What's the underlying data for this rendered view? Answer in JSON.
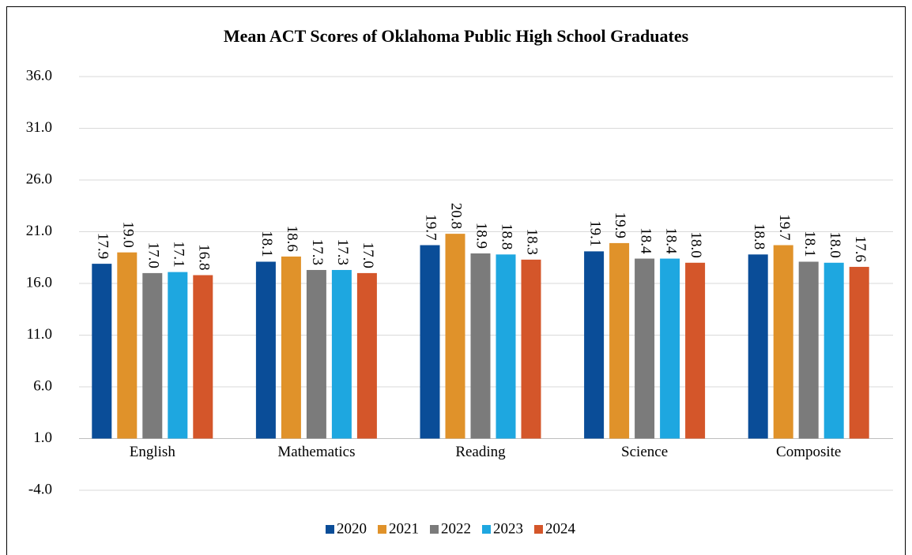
{
  "chart_data": {
    "type": "bar",
    "title": "Mean ACT Scores of Oklahoma Public High School Graduates",
    "categories": [
      "English",
      "Mathematics",
      "Reading",
      "Science",
      "Composite"
    ],
    "series": [
      {
        "name": "2020",
        "color": "#0a4d98",
        "values": [
          17.9,
          18.1,
          19.7,
          19.1,
          18.8
        ],
        "value_labels": [
          "17.9",
          "18.1",
          "19.7",
          "19.1",
          "18.8"
        ]
      },
      {
        "name": "2021",
        "color": "#e0922a",
        "values": [
          19.0,
          18.6,
          20.8,
          19.9,
          19.7
        ],
        "value_labels": [
          "19.0",
          "18.6",
          "20.8",
          "19.9",
          "19.7"
        ]
      },
      {
        "name": "2022",
        "color": "#7b7b7b",
        "values": [
          17.0,
          17.3,
          18.9,
          18.4,
          18.1
        ],
        "value_labels": [
          "17.0",
          "17.3",
          "18.9",
          "18.4",
          "18.1"
        ]
      },
      {
        "name": "2023",
        "color": "#1ea7e0",
        "values": [
          17.1,
          17.3,
          18.8,
          18.4,
          18.0
        ],
        "value_labels": [
          "17.1",
          "17.3",
          "18.8",
          "18.4",
          "18.0"
        ]
      },
      {
        "name": "2024",
        "color": "#d4562a",
        "values": [
          16.8,
          17.0,
          18.3,
          18.0,
          17.6
        ],
        "value_labels": [
          "16.8",
          "17.0",
          "18.3",
          "18.0",
          "17.6"
        ]
      }
    ],
    "ylim": [
      -4,
      36
    ],
    "yticks": [
      {
        "value": -4,
        "label": "-4.0"
      },
      {
        "value": 1,
        "label": "1.0"
      },
      {
        "value": 6,
        "label": "6.0"
      },
      {
        "value": 11,
        "label": "11.0"
      },
      {
        "value": 16,
        "label": "16.0"
      },
      {
        "value": 21,
        "label": "21.0"
      },
      {
        "value": 26,
        "label": "26.0"
      },
      {
        "value": 31,
        "label": "31.0"
      },
      {
        "value": 36,
        "label": "36.0"
      }
    ],
    "xaxis_crosses": 1,
    "grid": true,
    "legend": "bottom"
  }
}
